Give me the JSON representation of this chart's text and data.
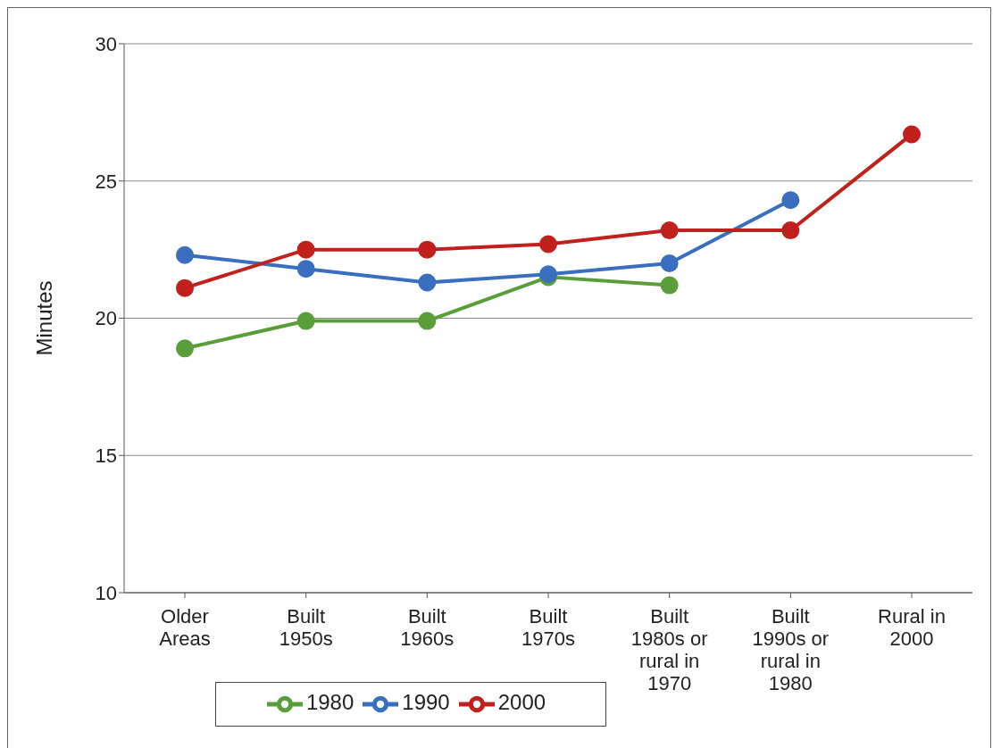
{
  "chart_data": {
    "type": "line",
    "ylabel": "Minutes",
    "categories": [
      "Older Areas",
      "Built 1950s",
      "Built 1960s",
      "Built 1970s",
      "Built 1980s or rural in 1970",
      "Built 1990s or rural in 1980",
      "Rural in 2000"
    ],
    "series": [
      {
        "name": "1980",
        "color": "#5a9e3a",
        "values": [
          18.9,
          19.9,
          19.9,
          21.5,
          21.2,
          null,
          null
        ]
      },
      {
        "name": "1990",
        "color": "#3a6ebf",
        "values": [
          22.3,
          21.8,
          21.3,
          21.6,
          22.0,
          24.3,
          null
        ]
      },
      {
        "name": "2000",
        "color": "#c0211d",
        "values": [
          21.1,
          22.5,
          22.5,
          22.7,
          23.2,
          23.2,
          26.7
        ]
      }
    ],
    "ylim": [
      10,
      30
    ],
    "yticks": [
      10,
      15,
      20,
      25,
      30
    ],
    "grid": "y",
    "legend": "bottom",
    "marker": "circle",
    "line_style": "solid"
  }
}
